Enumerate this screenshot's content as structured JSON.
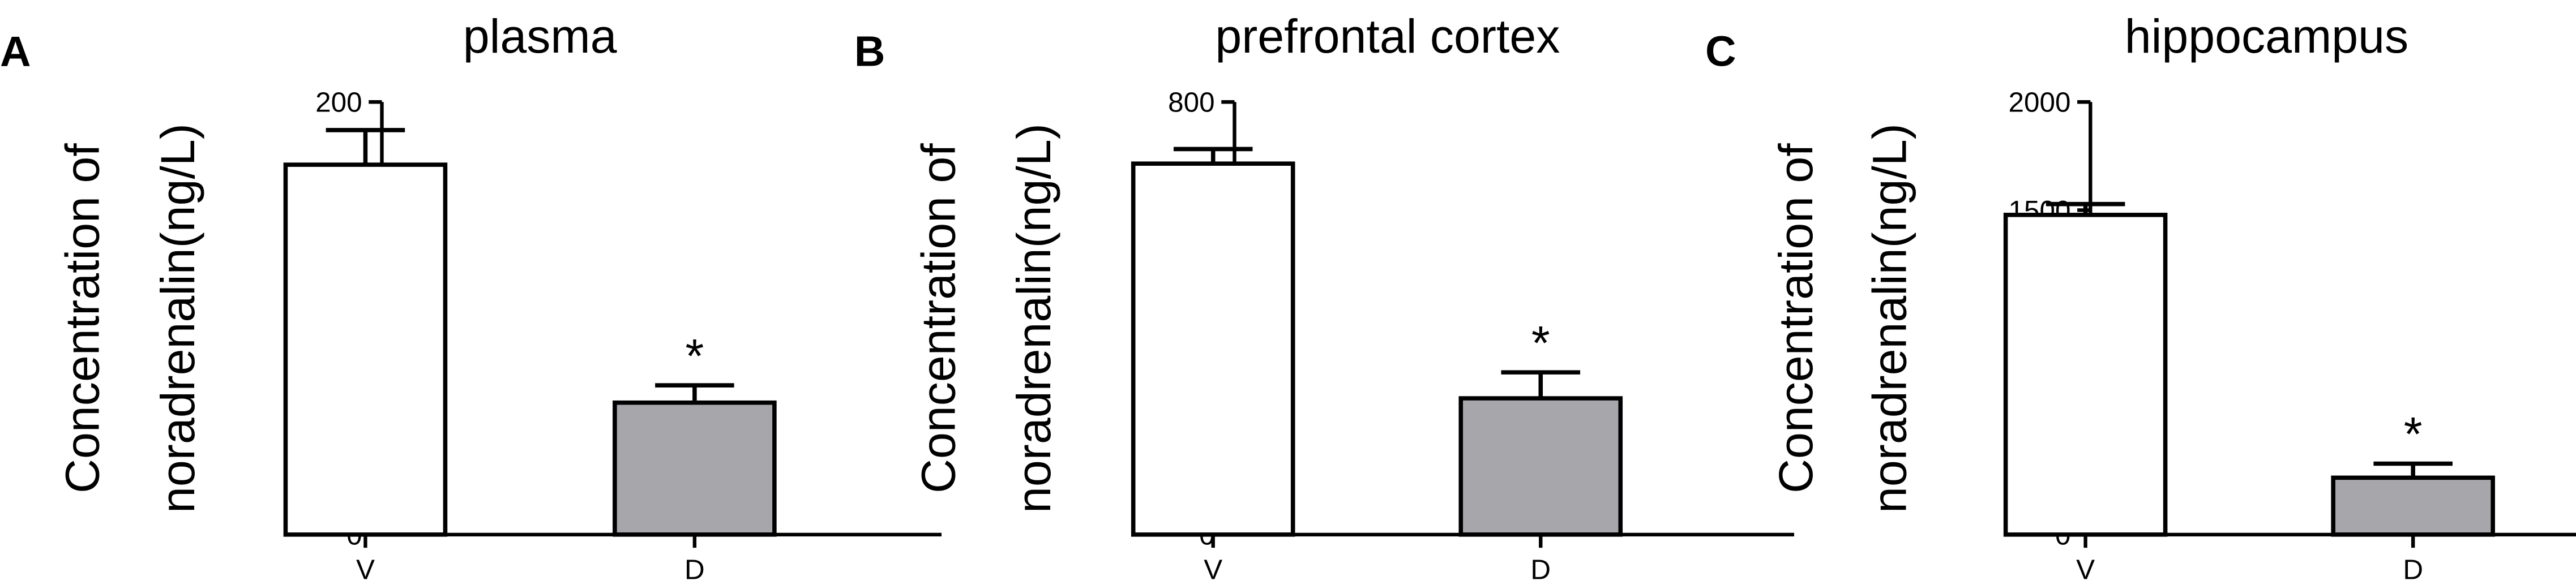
{
  "chart_data": [
    {
      "type": "bar",
      "panel": "A",
      "title": "plasma",
      "ylabel_lines": [
        "Concentration of",
        "noradrenalin(ng/L)"
      ],
      "categories": [
        "V",
        "D"
      ],
      "values": [
        171,
        61
      ],
      "errors": [
        16,
        8
      ],
      "bar_colors": [
        "#ffffff",
        "#a7a6ab"
      ],
      "annotations": [
        "",
        "*"
      ],
      "ylim": [
        0,
        200
      ],
      "yticks": [
        "0",
        "50",
        "100",
        "150",
        "200"
      ],
      "ytick_values": [
        0,
        50,
        100,
        150,
        200
      ],
      "grid": false
    },
    {
      "type": "bar",
      "panel": "B",
      "title": "prefrontal cortex",
      "ylabel_lines": [
        "Concentration of",
        "noradrenalin(ng/L)"
      ],
      "categories": [
        "V",
        "D"
      ],
      "values": [
        686,
        252
      ],
      "errors": [
        27,
        48
      ],
      "bar_colors": [
        "#ffffff",
        "#a7a6ab"
      ],
      "annotations": [
        "",
        "*"
      ],
      "ylim": [
        0,
        800
      ],
      "yticks": [
        "0",
        "200",
        "400",
        "600",
        "800"
      ],
      "ytick_values": [
        0,
        200,
        400,
        600,
        800
      ],
      "grid": false
    },
    {
      "type": "bar",
      "panel": "C",
      "title": "hippocampus",
      "ylabel_lines": [
        "Concentration of",
        "noradrenalin(ng/L)"
      ],
      "categories": [
        "V",
        "D"
      ],
      "values": [
        1478,
        263
      ],
      "errors": [
        50,
        65
      ],
      "bar_colors": [
        "#ffffff",
        "#a7a6ab"
      ],
      "annotations": [
        "",
        "*"
      ],
      "ylim": [
        0,
        2000
      ],
      "yticks": [
        "0",
        "500",
        "1000",
        "1500",
        "2000"
      ],
      "ytick_values": [
        0,
        500,
        1000,
        1500,
        2000
      ],
      "grid": false
    }
  ]
}
